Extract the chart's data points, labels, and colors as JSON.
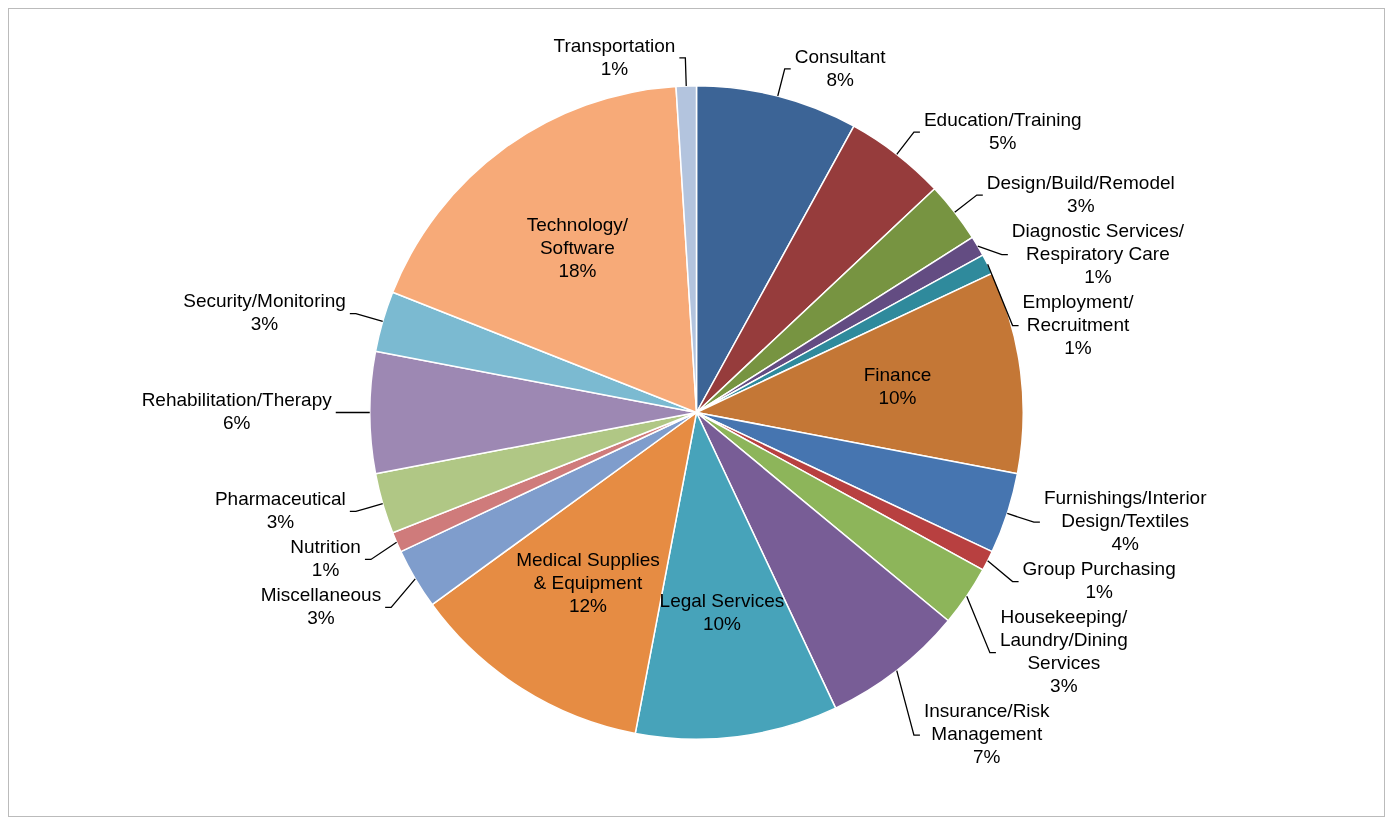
{
  "chart_data": {
    "type": "pie",
    "categories": [
      "Consultant",
      "Education/Training",
      "Design/Build/Remodel",
      "Diagnostic Services/Respiratory Care",
      "Employment/Recruitment",
      "Finance",
      "Furnishings/Interior Design/Textiles",
      "Group Purchasing",
      "Housekeeping/Laundry/Dining Services",
      "Insurance/Risk Management",
      "Legal Services",
      "Medical Supplies & Equipment",
      "Miscellaneous",
      "Nutrition",
      "Pharmaceutical",
      "Rehabilitation/Therapy",
      "Security/Monitoring",
      "Technology/Software",
      "Transportation"
    ],
    "values": [
      8,
      5,
      3,
      1,
      1,
      10,
      4,
      1,
      3,
      7,
      10,
      12,
      3,
      1,
      3,
      6,
      3,
      18,
      1
    ],
    "value_labels": [
      "8%",
      "5%",
      "3%",
      "1%",
      "1%",
      "10%",
      "4%",
      "1%",
      "3%",
      "7%",
      "10%",
      "12%",
      "3%",
      "1%",
      "3%",
      "6%",
      "3%",
      "18%",
      "1%"
    ],
    "colors": [
      "#3c6496",
      "#963c3c",
      "#779441",
      "#634c82",
      "#2f8a9c",
      "#c47736",
      "#4675b0",
      "#b84040",
      "#8db55a",
      "#785d96",
      "#47a3ba",
      "#e68c43",
      "#7f9dcc",
      "#cf7b7b",
      "#b0c785",
      "#9d88b3",
      "#7bbad1",
      "#f7aa78",
      "#b3c4de"
    ],
    "legend": false
  }
}
